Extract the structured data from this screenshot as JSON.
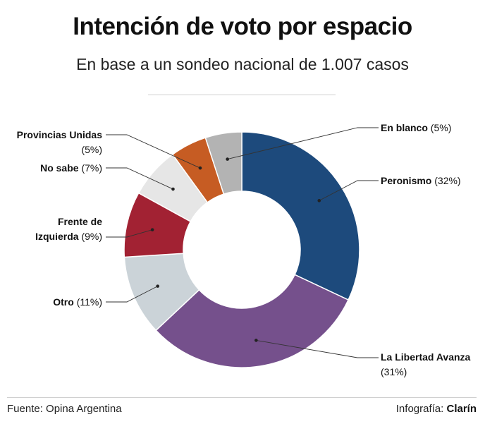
{
  "header": {
    "title": "Intención de voto por espacio",
    "subtitle": "En base a un sondeo nacional de 1.007 casos"
  },
  "footer": {
    "source": "Fuente: Opina Argentina",
    "credit_label": "Infografía:",
    "credit_brand": "Clarín"
  },
  "chart_data": {
    "type": "pie",
    "variant": "donut",
    "unit": "%",
    "slices": [
      {
        "name": "Peronismo",
        "value": 32,
        "value_label": "(32%)",
        "color": "#1d4a7c"
      },
      {
        "name": "La Libertad Avanza",
        "value": 31,
        "value_label": "(31%)",
        "color": "#75508c"
      },
      {
        "name": "Otro",
        "value": 11,
        "value_label": "(11%)",
        "color": "#cbd3d8"
      },
      {
        "name": "Frente de Izquierda",
        "value": 9,
        "value_label": "(9%)",
        "color": "#a22233"
      },
      {
        "name": "No sabe",
        "value": 7,
        "value_label": "(7%)",
        "color": "#e6e6e6"
      },
      {
        "name": "Provincias Unidas",
        "value": 5,
        "value_label": "(5%)",
        "color": "#c65c23"
      },
      {
        "name": "En blanco",
        "value": 5,
        "value_label": "(5%)",
        "color": "#b3b3b3"
      }
    ]
  }
}
